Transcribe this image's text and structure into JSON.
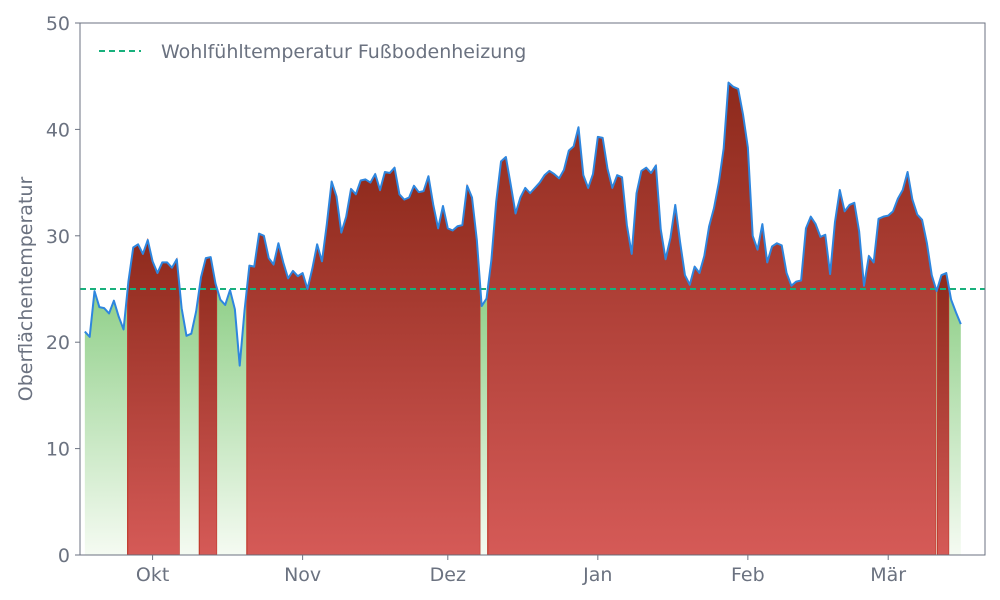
{
  "chart_data": {
    "type": "area",
    "title": "",
    "xlabel": "",
    "ylabel": "Oberflächentemperatur",
    "ylim": [
      0,
      50
    ],
    "yticks": [
      0,
      10,
      20,
      30,
      40,
      50
    ],
    "x_start": "2023-09-16",
    "x_end": "2024-03-21",
    "xticks": [
      {
        "date": "2023-10-01",
        "label": "Okt"
      },
      {
        "date": "2023-11-01",
        "label": "Nov"
      },
      {
        "date": "2023-12-01",
        "label": "Dez"
      },
      {
        "date": "2024-01-01",
        "label": "Jan"
      },
      {
        "date": "2024-02-01",
        "label": "Feb"
      },
      {
        "date": "2024-03-01",
        "label": "Mär"
      }
    ],
    "grid": false,
    "legend_position": "top-left",
    "reference_line": {
      "name": "Wohlfühltemperatur Fußbodenheizung",
      "value": 25,
      "style": "dashed"
    },
    "series": [
      {
        "start_date": "2023-09-17",
        "values": [
          21.0,
          20.5,
          24.8,
          23.3,
          23.2,
          22.7,
          23.9,
          22.4,
          21.2,
          25.7,
          28.9,
          29.2,
          28.3,
          29.6,
          27.6,
          26.5,
          27.5,
          27.5,
          27.0,
          27.8,
          23.2,
          20.6,
          20.8,
          22.9,
          26.1,
          27.9,
          28.0,
          25.5,
          24.0,
          23.5,
          24.9,
          23.1,
          17.8,
          23.0,
          27.2,
          27.1,
          30.2,
          30.0,
          27.9,
          27.3,
          29.3,
          27.5,
          26.0,
          26.7,
          26.2,
          26.5,
          25.0,
          26.9,
          29.2,
          27.6,
          31.1,
          35.1,
          33.7,
          30.3,
          31.8,
          34.4,
          33.9,
          35.2,
          35.3,
          35.0,
          35.8,
          34.3,
          36.0,
          35.9,
          36.4,
          33.9,
          33.4,
          33.6,
          34.7,
          34.1,
          34.2,
          35.6,
          32.9,
          30.7,
          32.8,
          30.7,
          30.5,
          30.9,
          31.0,
          34.7,
          33.6,
          29.6,
          23.4,
          24.1,
          27.7,
          33.2,
          37.0,
          37.4,
          34.8,
          32.1,
          33.6,
          34.5,
          34.0,
          34.5,
          35.0,
          35.7,
          36.1,
          35.8,
          35.4,
          36.2,
          38.0,
          38.4,
          40.2,
          35.7,
          34.5,
          35.8,
          39.3,
          39.2,
          36.3,
          34.5,
          35.7,
          35.5,
          31.0,
          28.3,
          34.0,
          36.1,
          36.4,
          35.9,
          36.6,
          30.6,
          27.8,
          29.8,
          32.9,
          29.4,
          26.3,
          25.4,
          27.1,
          26.5,
          28.1,
          30.9,
          32.6,
          35.0,
          38.2,
          44.4,
          44.0,
          43.8,
          41.4,
          38.3,
          30.0,
          28.7,
          31.1,
          27.5,
          29.0,
          29.3,
          29.1,
          26.5,
          25.3,
          25.7,
          25.8,
          30.7,
          31.8,
          31.1,
          29.9,
          30.1,
          26.4,
          31.3,
          34.3,
          32.3,
          32.9,
          33.1,
          30.4,
          25.3,
          28.1,
          27.5,
          31.6,
          31.8,
          31.9,
          32.3,
          33.5,
          34.3,
          36.0,
          33.4,
          32.0,
          31.5,
          29.3,
          26.3,
          24.8,
          26.3,
          26.5,
          24.0,
          22.8,
          21.7
        ]
      }
    ],
    "colors": {
      "line": "#2e86de",
      "above_top": "#8e2a1c",
      "above_bottom": "#d55a57",
      "below_top": "#8fcf88",
      "below_bottom": "#f5fbf2",
      "reference": "#18b07c",
      "axis": "#6b7280"
    }
  }
}
